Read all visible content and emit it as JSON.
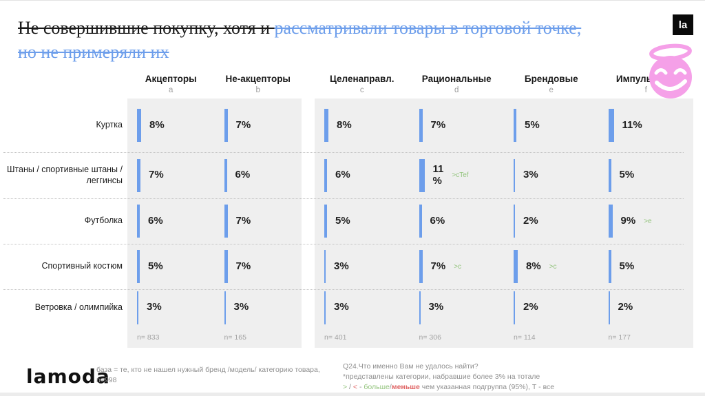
{
  "title": {
    "part1": "Не совершившие покупку, хотя и ",
    "part2": "рассматривали товары в торговой точке,",
    "part3": "но не примеряли их"
  },
  "badges": {
    "la": "la"
  },
  "colors": {
    "bar_blue": "#6d9eeb",
    "title_blue": "#6d9eeb",
    "block_gray": "#efefef",
    "annotation_green": "#93c47d",
    "legend_red": "#e06666",
    "emoji_pink": "#f5a0e8"
  },
  "chart_data": {
    "type": "bar",
    "unit": "%",
    "title": "Не совершившие покупку, хотя и рассматривали товары в торговой точке, но не примеряли их",
    "categories": [
      "Куртка",
      "Штаны / спортивные штаны / леггинсы",
      "Футболка",
      "Спортивный костюм",
      "Ветровка / олимпийка"
    ],
    "series": [
      {
        "name": "Акцепторы",
        "letter": "a",
        "n_label": "n= 833",
        "values": [
          8,
          7,
          6,
          5,
          3
        ],
        "labels": [
          "8%",
          "7%",
          "6%",
          "5%",
          "3%"
        ],
        "annotations": [
          "",
          "",
          "",
          "",
          ""
        ]
      },
      {
        "name": "Не-акцепторы",
        "letter": "b",
        "n_label": "n= 165",
        "values": [
          7,
          6,
          7,
          7,
          3
        ],
        "labels": [
          "7%",
          "6%",
          "7%",
          "7%",
          "3%"
        ],
        "annotations": [
          "",
          "",
          "",
          "",
          ""
        ]
      },
      {
        "name": "Целенаправл.",
        "letter": "c",
        "n_label": "n= 401",
        "values": [
          8,
          6,
          5,
          3,
          3
        ],
        "labels": [
          "8%",
          "6%",
          "5%",
          "3%",
          "3%"
        ],
        "annotations": [
          "",
          "",
          "",
          "",
          ""
        ]
      },
      {
        "name": "Рациональные",
        "letter": "d",
        "n_label": "n= 306",
        "values": [
          7,
          11,
          6,
          7,
          3
        ],
        "labels": [
          "7%",
          "11\n%",
          "6%",
          "7%",
          "3%"
        ],
        "annotations": [
          "",
          ">cTef",
          "",
          ">c",
          ""
        ]
      },
      {
        "name": "Брендовые",
        "letter": "e",
        "n_label": "n= 114",
        "values": [
          5,
          3,
          2,
          8,
          2
        ],
        "labels": [
          "5%",
          "3%",
          "2%",
          "8%",
          "2%"
        ],
        "annotations": [
          "",
          "",
          "",
          ">c",
          ""
        ]
      },
      {
        "name": "Импульсные",
        "letter": "f",
        "n_label": "n= 177",
        "values": [
          11,
          5,
          9,
          5,
          2
        ],
        "labels": [
          "11%",
          "5%",
          "9%",
          "5%",
          "2%"
        ],
        "annotations": [
          "",
          "",
          ">e",
          "",
          ""
        ]
      }
    ],
    "column_groups": [
      [
        "a",
        "b"
      ],
      [
        "c",
        "d",
        "e",
        "f"
      ]
    ],
    "legend_position": "none",
    "grid": "dotted-row-separators"
  },
  "footer": {
    "logo": "lamoda",
    "base_line1": "база = те, кто не нашел нужный бренд /модель/ категорию товара,",
    "base_line2": "n=998",
    "q_line1": "Q24.Что именно Вам не удалось найти?",
    "q_line2": "*представлены категории, набравшие более 3% на тотале",
    "legend": {
      "gt": ">",
      "slash1": " / ",
      "lt": "<",
      "dash": " - ",
      "more": "больше",
      "slash2": "/",
      "less": "меньше",
      "rest": " чем указанная подгруппа (95%), Т - все"
    }
  }
}
